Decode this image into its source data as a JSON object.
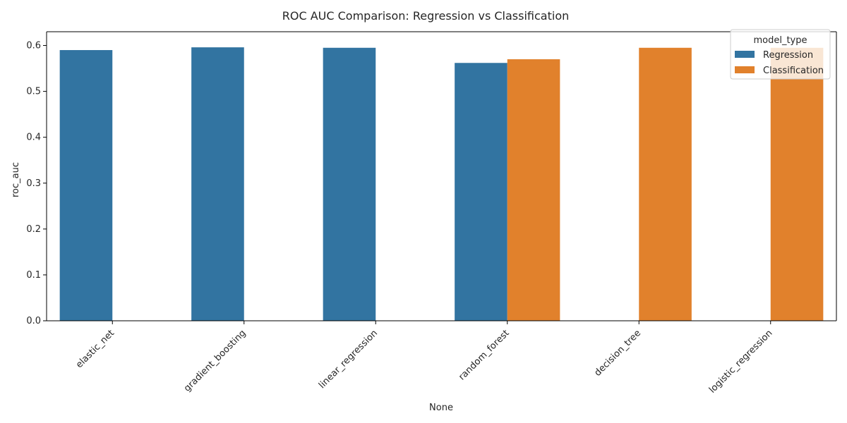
{
  "chart_data": {
    "type": "bar",
    "title": "ROC AUC Comparison: Regression vs Classification",
    "xlabel": "None",
    "ylabel": "roc_auc",
    "categories": [
      "elastic_net",
      "gradient_boosting",
      "linear_regression",
      "random_forest",
      "decision_tree",
      "logistic_regression"
    ],
    "series": [
      {
        "name": "Regression",
        "color": "#3274a1",
        "values": [
          0.59,
          0.596,
          0.595,
          0.562,
          null,
          null
        ]
      },
      {
        "name": "Classification",
        "color": "#e1812c",
        "values": [
          null,
          null,
          null,
          0.57,
          0.595,
          0.595
        ]
      }
    ],
    "ylim": [
      0,
      0.63
    ],
    "yticks": [
      "0.0",
      "0.1",
      "0.2",
      "0.3",
      "0.4",
      "0.5",
      "0.6"
    ],
    "legend": {
      "title": "model_type",
      "position": "top-right"
    },
    "grid": false
  }
}
